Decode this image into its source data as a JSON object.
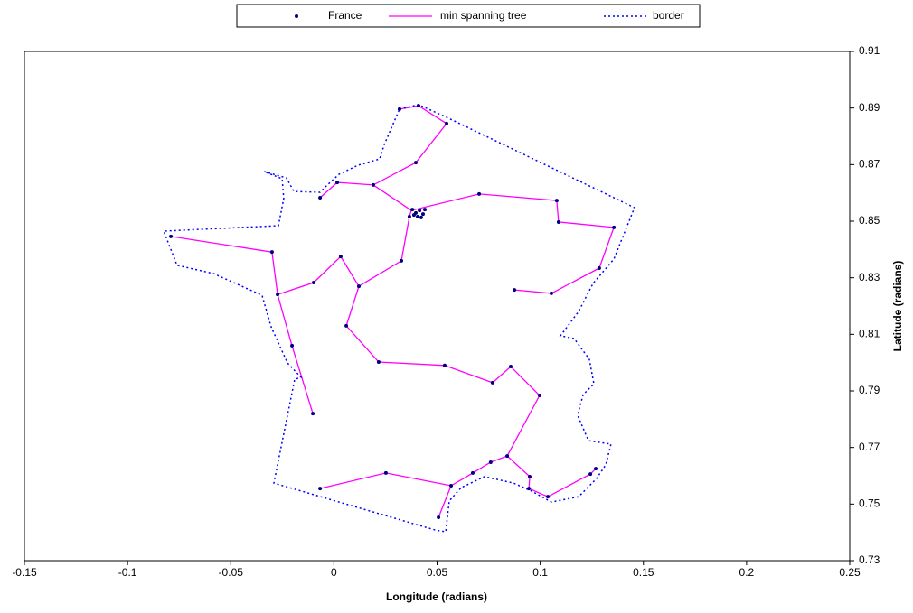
{
  "chart_data": {
    "type": "scatter",
    "xlabel": "Longitude (radians)",
    "ylabel": "Latitude (radians)",
    "xlim": [
      -0.15,
      0.25
    ],
    "xticks": [
      -0.15,
      -0.1,
      -0.05,
      0,
      0.05,
      0.1,
      0.15,
      0.2,
      0.25
    ],
    "ylim": [
      0.73,
      0.91
    ],
    "yticks": [
      0.73,
      0.75,
      0.77,
      0.79,
      0.81,
      0.83,
      0.85,
      0.87,
      0.89,
      0.91
    ],
    "y_axis_side": "right",
    "grid": false,
    "legend": "top",
    "series": [
      {
        "name": "France",
        "color": "#000080",
        "marker": true,
        "x": [
          0.0318,
          0.041,
          0.0546,
          0.0397,
          0.0191,
          0.0016,
          -0.0067,
          0.0704,
          0.108,
          0.1089,
          0.1357,
          0.1286,
          0.1054,
          0.0875,
          0.038,
          0.0397,
          0.0415,
          0.0432,
          0.0423,
          0.0441,
          0.0406,
          0.0388,
          0.0366,
          0.0327,
          0.0033,
          0.0121,
          -0.0098,
          -0.03,
          -0.0273,
          -0.079,
          -0.0203,
          -0.0102,
          0.006,
          0.0217,
          0.0537,
          0.0769,
          0.0857,
          0.0997,
          0.084,
          0.076,
          0.0673,
          0.0568,
          0.0507,
          0.0252,
          -0.0067,
          0.0949,
          0.0945,
          0.1037,
          0.1243,
          0.1269
        ],
        "values": [
          0.8896,
          0.8908,
          0.8845,
          0.8707,
          0.8628,
          0.8637,
          0.8583,
          0.8596,
          0.8573,
          0.8497,
          0.8478,
          0.8334,
          0.8245,
          0.8257,
          0.8541,
          0.8529,
          0.8538,
          0.8525,
          0.8513,
          0.8541,
          0.8516,
          0.8522,
          0.8516,
          0.836,
          0.8375,
          0.827,
          0.8283,
          0.8391,
          0.8241,
          0.8446,
          0.806,
          0.782,
          0.813,
          0.8002,
          0.799,
          0.7929,
          0.7986,
          0.7884,
          0.767,
          0.7648,
          0.761,
          0.7565,
          0.7453,
          0.761,
          0.7555,
          0.7597,
          0.7555,
          0.7526,
          0.7606,
          0.7625
        ]
      },
      {
        "name": "min spanning tree",
        "color": "#ff00ff",
        "line": "solid",
        "x": [
          0.0318,
          0.041,
          0.0546,
          0.0397,
          0.0191,
          0.0016,
          -0.0067,
          null,
          0.0191,
          0.0375,
          0.0704,
          0.108,
          0.1089,
          0.1357,
          0.1286,
          0.1054,
          0.0875,
          null,
          0.0375,
          0.0366,
          0.0327,
          0.0121,
          0.0033,
          -0.0098,
          -0.0273,
          -0.03,
          -0.079,
          null,
          -0.0273,
          -0.0203,
          -0.0102,
          null,
          0.0121,
          0.006,
          0.0217,
          0.0537,
          0.0769,
          0.0857,
          0.0997,
          0.084,
          0.076,
          0.0673,
          0.0568,
          0.0252,
          -0.0067,
          null,
          0.0568,
          0.0507,
          null,
          0.084,
          0.0949,
          0.0945,
          0.1037,
          0.1243,
          0.1269
        ],
        "values": [
          0.8896,
          0.8908,
          0.8845,
          0.8707,
          0.8628,
          0.8637,
          0.8583,
          null,
          0.8628,
          0.8538,
          0.8596,
          0.8573,
          0.8497,
          0.8478,
          0.8334,
          0.8245,
          0.8257,
          null,
          0.8538,
          0.8516,
          0.836,
          0.827,
          0.8375,
          0.8283,
          0.8241,
          0.8391,
          0.8446,
          null,
          0.8241,
          0.806,
          0.782,
          null,
          0.827,
          0.813,
          0.8002,
          0.799,
          0.7929,
          0.7986,
          0.7884,
          0.767,
          0.7648,
          0.761,
          0.7565,
          0.761,
          0.7555,
          null,
          0.7565,
          0.7453,
          null,
          0.767,
          0.7597,
          0.7555,
          0.7526,
          0.7606,
          0.7625
        ]
      },
      {
        "name": "border",
        "color": "#0000ff",
        "line": "dotted",
        "x": [
          0.0318,
          0.041,
          0.0555,
          0.1457,
          0.1357,
          0.1256,
          0.1186,
          0.1098,
          0.1164,
          0.1238,
          0.126,
          0.1208,
          0.1181,
          0.1234,
          0.1343,
          0.1317,
          0.1273,
          0.1186,
          0.1054,
          0.0958,
          0.087,
          0.073,
          0.0616,
          0.0559,
          0.0542,
          0.0493,
          -0.0291,
          -0.019,
          -0.0159,
          -0.0225,
          -0.0304,
          -0.0348,
          -0.0584,
          -0.076,
          -0.0825,
          -0.0269,
          -0.0243,
          -0.0251,
          -0.0339,
          -0.023,
          -0.0194,
          -0.0067,
          -0.0032,
          0.0025,
          0.0117,
          0.0222,
          0.0244,
          0.0318
        ],
        "values": [
          0.8896,
          0.8912,
          0.8864,
          0.8548,
          0.8366,
          0.828,
          0.8181,
          0.8095,
          0.8085,
          0.8012,
          0.7925,
          0.7887,
          0.7814,
          0.7724,
          0.7712,
          0.7638,
          0.759,
          0.7526,
          0.7507,
          0.7546,
          0.7574,
          0.7597,
          0.7558,
          0.7511,
          0.7402,
          0.7408,
          0.7574,
          0.7941,
          0.7948,
          0.7999,
          0.8126,
          0.8238,
          0.8315,
          0.8344,
          0.8465,
          0.8484,
          0.858,
          0.865,
          0.8676,
          0.8653,
          0.8605,
          0.8602,
          0.8628,
          0.8666,
          0.8698,
          0.872,
          0.8771,
          0.8896
        ]
      }
    ]
  }
}
